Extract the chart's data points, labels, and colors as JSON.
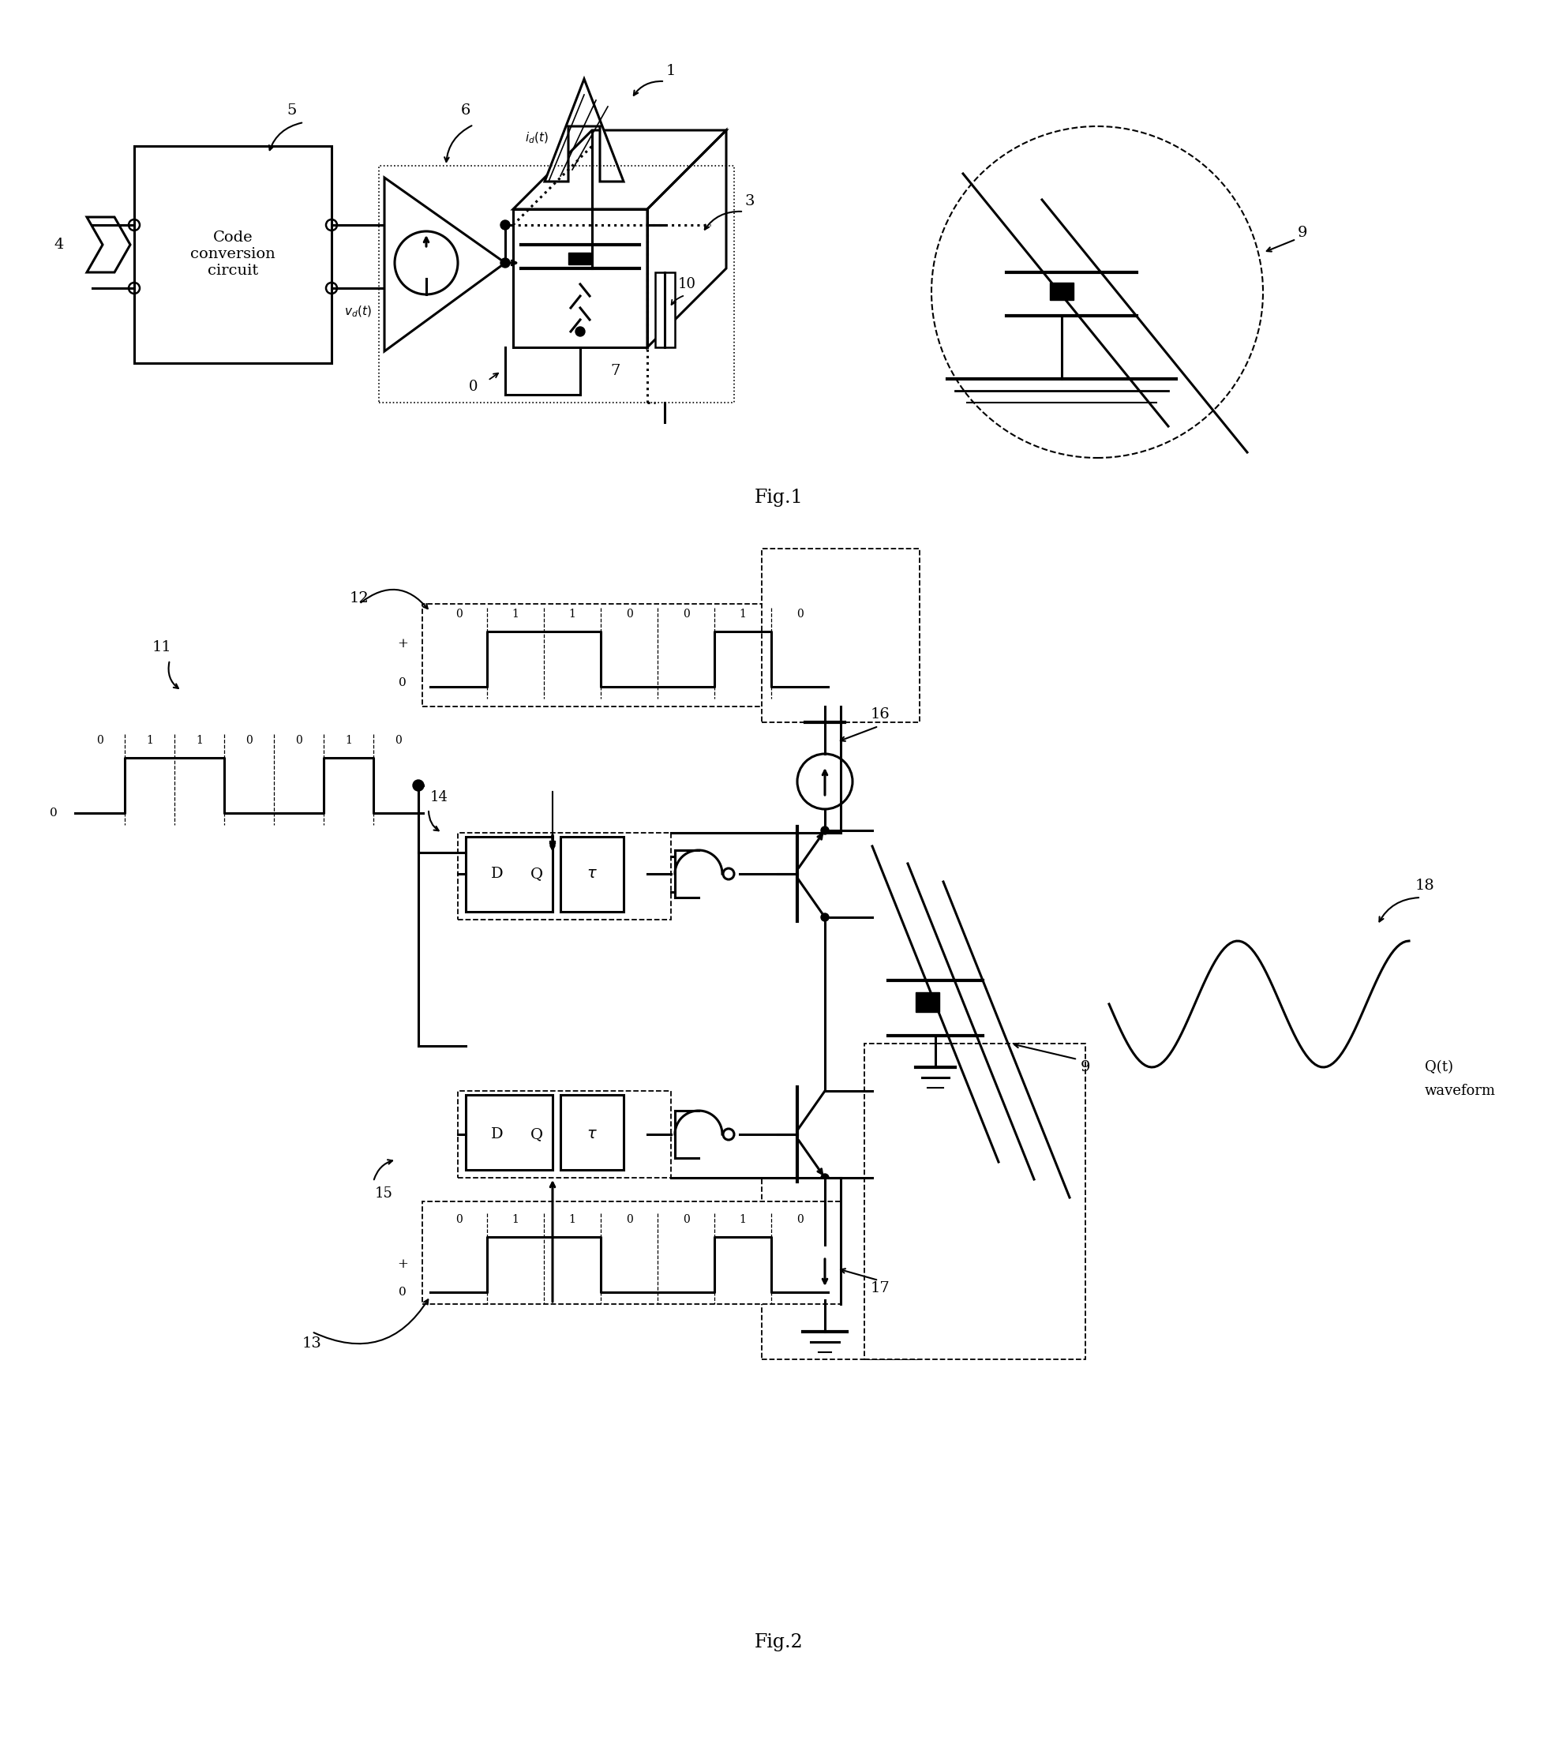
{
  "fig1_caption": "Fig.1",
  "fig2_caption": "Fig.2",
  "background_color": "#ffffff",
  "line_color": "#000000",
  "label_fontsize": 14,
  "caption_fontsize": 16,
  "bits_upper": [
    0,
    1,
    1,
    0,
    0,
    1,
    0
  ],
  "bits_lower": [
    0,
    1,
    1,
    0,
    0,
    1,
    0
  ],
  "bits_input": [
    0,
    1,
    1,
    0,
    0,
    1,
    0
  ]
}
